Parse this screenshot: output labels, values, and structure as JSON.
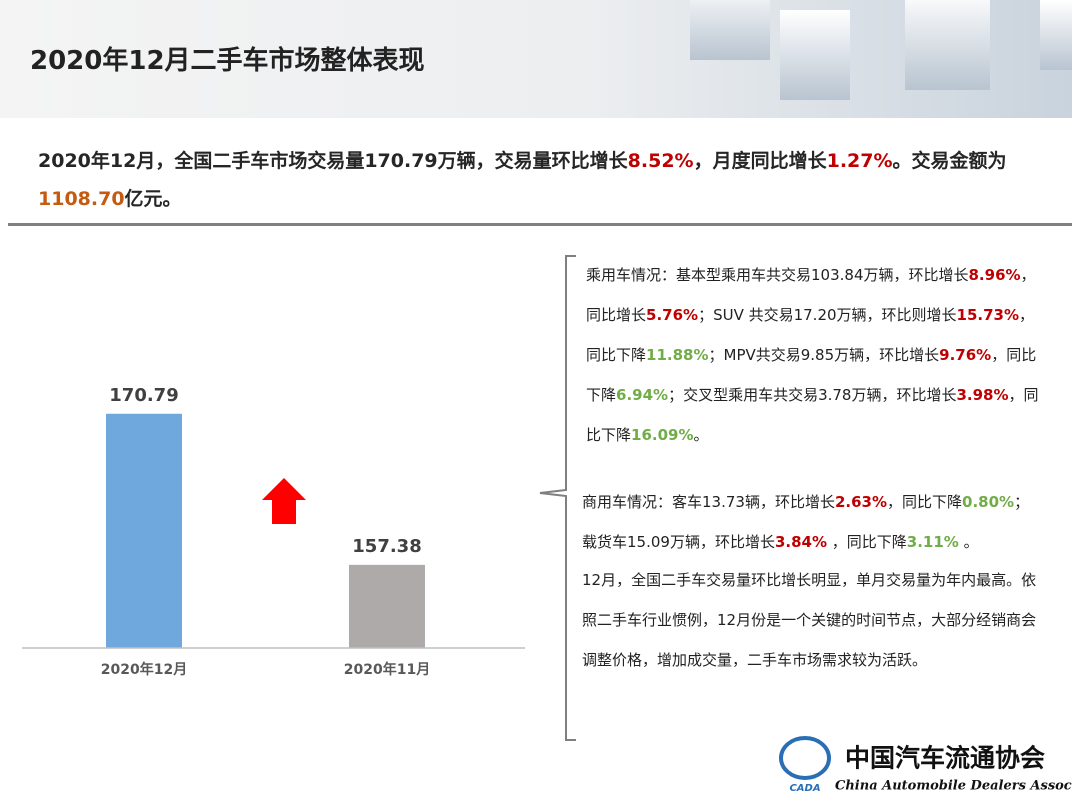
{
  "header": {
    "title": "2020年12月二手车市场整体表现"
  },
  "summary": [
    {
      "text": "2020年12月，全国二手车市场交易量170.79万辆，交易量环比增长"
    },
    {
      "text": "8.52%",
      "color": "#c00000"
    },
    {
      "text": "，月度同比增长"
    },
    {
      "text": "1.27%",
      "color": "#c00000"
    },
    {
      "text": "。交易金额为"
    },
    {
      "text": "1108.70",
      "color": "#c55a11"
    },
    {
      "text": "亿元。"
    }
  ],
  "chart_data": {
    "type": "bar",
    "categories": [
      "2020年12月",
      "2020年11月"
    ],
    "values": [
      170.79,
      157.38
    ],
    "colors": [
      "#6fa8dc",
      "#aeaaa9"
    ],
    "ylim": [
      150,
      180
    ]
  },
  "notes": [
    [
      {
        "text": "乘用车情况：基本型乘用车共交易103.84万辆，环比增长"
      },
      {
        "text": "8.96%",
        "color": "#c00000"
      },
      {
        "text": "，同比增长"
      },
      {
        "text": "5.76%",
        "color": "#c00000"
      },
      {
        "text": "；SUV 共交易17.20万辆，环比则增长"
      },
      {
        "text": "15.73%",
        "color": "#c00000"
      },
      {
        "text": "，同比下降"
      },
      {
        "text": "11.88%",
        "color": "#70ad47"
      },
      {
        "text": "；MPV共交易9.85万辆，环比增长"
      },
      {
        "text": "9.76%",
        "color": "#c00000"
      },
      {
        "text": "，同比下降"
      },
      {
        "text": "6.94%",
        "color": "#70ad47"
      },
      {
        "text": "；交叉型乘用车共交易3.78万辆，环比增长"
      },
      {
        "text": "3.98%",
        "color": "#c00000"
      },
      {
        "text": "，同比下降"
      },
      {
        "text": "16.09%",
        "color": "#70ad47"
      },
      {
        "text": "。"
      }
    ],
    [
      {
        "text": "商用车情况：客车13.73辆，环比增长"
      },
      {
        "text": "2.63%",
        "color": "#c00000"
      },
      {
        "text": "，同比下降"
      },
      {
        "text": "0.80%",
        "color": "#70ad47"
      },
      {
        "text": "；载货车15.09万辆，环比增长"
      },
      {
        "text": "3.84%",
        "color": "#c00000"
      },
      {
        "text": " ，同比下降"
      },
      {
        "text": "3.11%",
        "color": "#70ad47"
      },
      {
        "text": " 。"
      }
    ],
    [
      {
        "text": "12月，全国二手车交易量环比增长明显，单月交易量为年内最高。依照二手车行业惯例，12月份是一个关键的时间节点，大部分经销商会调整价格，增加成交量，二手车市场需求较为活跃。"
      }
    ]
  ],
  "logo": {
    "name": "中国汽车流通协会",
    "english": "China Automobile Dealers Association",
    "abbr": "CADA"
  }
}
